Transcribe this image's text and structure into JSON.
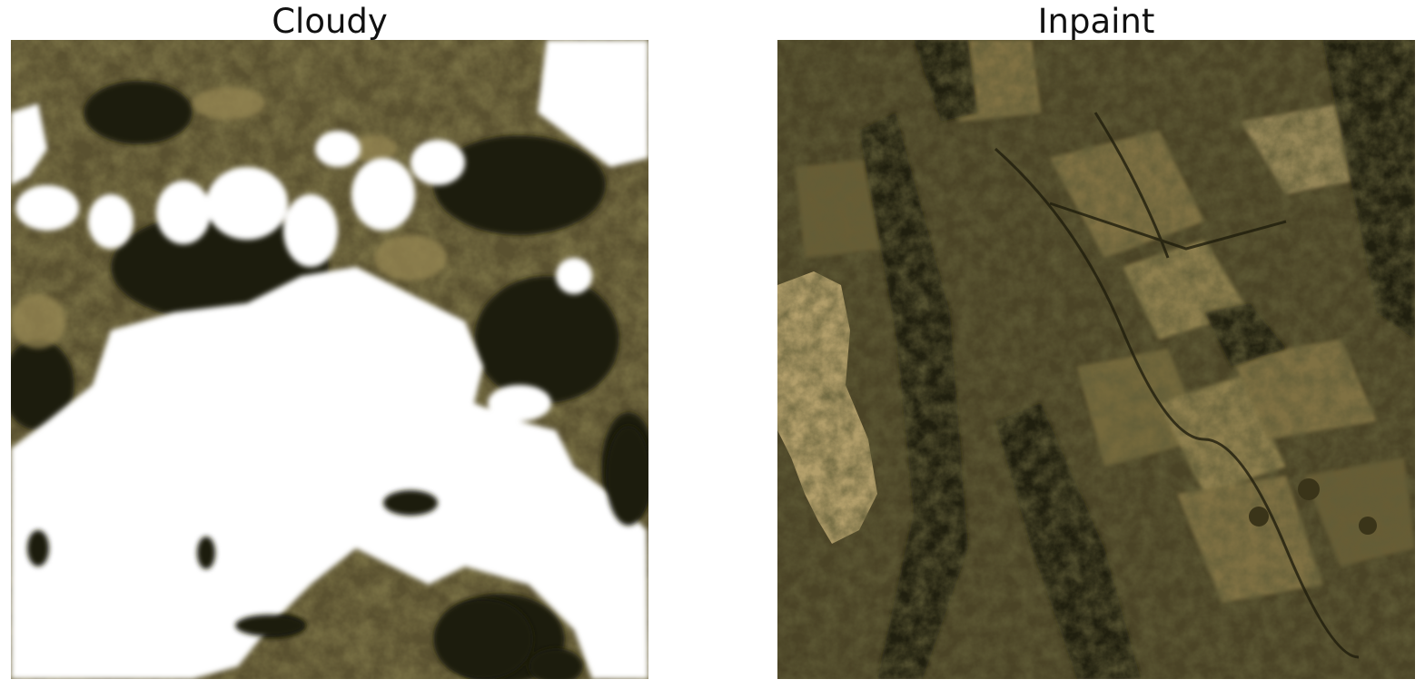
{
  "panels": [
    {
      "title": "Cloudy"
    },
    {
      "title": "Inpaint"
    }
  ],
  "colors": {
    "dark": "#1f1d0c",
    "mid": "#4a4326",
    "olive": "#6e6237",
    "tan": "#9a8a55",
    "light_tan": "#c2ad77",
    "cloud": "#ffffff"
  }
}
